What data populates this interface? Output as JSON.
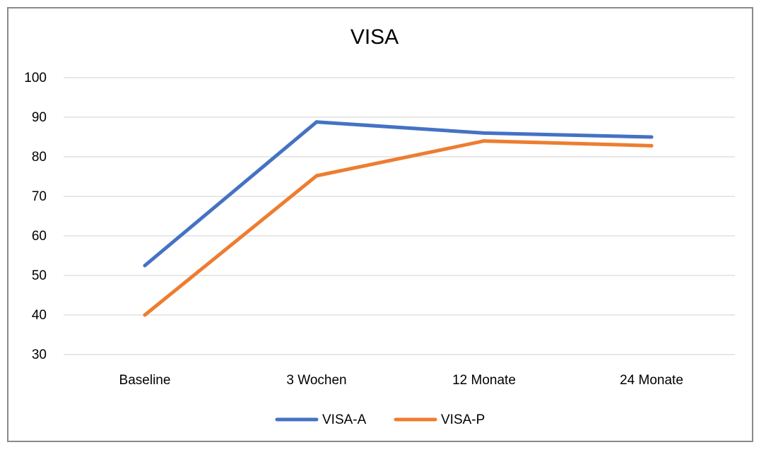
{
  "chart_data": {
    "type": "line",
    "title": "VISA",
    "xlabel": "",
    "ylabel": "",
    "categories": [
      "Baseline",
      "3 Wochen",
      "12 Monate",
      "24 Monate"
    ],
    "ylim": [
      30,
      100
    ],
    "yticks": [
      30,
      40,
      50,
      60,
      70,
      80,
      90,
      100
    ],
    "grid": true,
    "legend_position": "bottom",
    "series": [
      {
        "name": "VISA-A",
        "values": [
          52.5,
          88.8,
          86,
          85
        ],
        "color": "#4472C4"
      },
      {
        "name": "VISA-P",
        "values": [
          40,
          75.2,
          84,
          82.8
        ],
        "color": "#ED7D31"
      }
    ]
  }
}
